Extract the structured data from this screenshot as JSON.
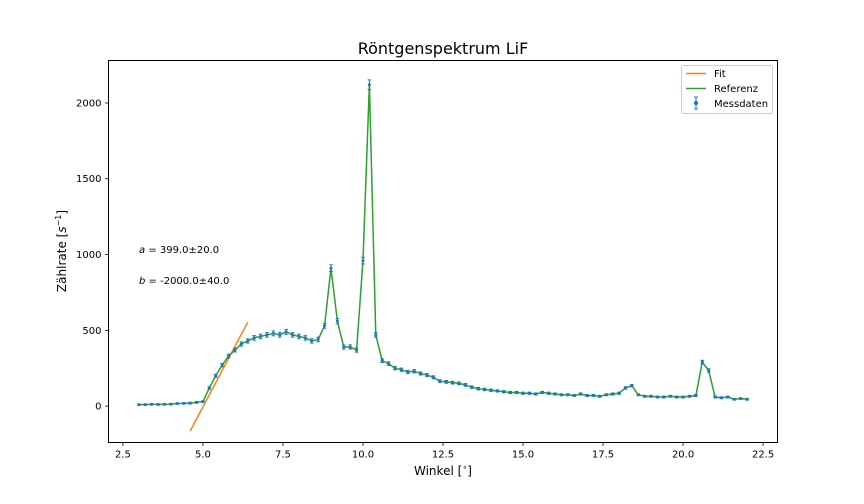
{
  "chart_data": {
    "type": "line",
    "title": "Röntgenspektrum LiF",
    "xlabel": "Winkel [$^\\circ$]",
    "xlabel_parts": {
      "main": "Winkel [",
      "sup": "∘",
      "end": "]"
    },
    "ylabel_parts": {
      "main": "Zählrate [",
      "var": "s",
      "sup": "−1",
      "end": "]"
    },
    "xlim": [
      2.05,
      22.95
    ],
    "ylim": [
      -240,
      2280
    ],
    "xticks": [
      2.5,
      5.0,
      7.5,
      10.0,
      12.5,
      15.0,
      17.5,
      20.0,
      22.5
    ],
    "xtick_labels": [
      "2.5",
      "5.0",
      "7.5",
      "10.0",
      "12.5",
      "15.0",
      "17.5",
      "20.0",
      "22.5"
    ],
    "yticks": [
      0,
      500,
      1000,
      1500,
      2000
    ],
    "ytick_labels": [
      "0",
      "500",
      "1000",
      "1500",
      "2000"
    ],
    "grid": false,
    "legend_position": "top-right",
    "legend": [
      {
        "label": "Fit",
        "kind": "line",
        "color": "#ff7f0e"
      },
      {
        "label": "Referenz",
        "kind": "line",
        "color": "#2ca02c"
      },
      {
        "label": "Messdaten",
        "kind": "errorbar",
        "color": "#1f77b4"
      }
    ],
    "annotations": [
      {
        "var": "a",
        "text": " = 399.0±20.0"
      },
      {
        "var": "b",
        "text": " = -2000.0±40.0"
      }
    ],
    "x": [
      3.0,
      3.2,
      3.4,
      3.6,
      3.8,
      4.0,
      4.2,
      4.4,
      4.6,
      4.8,
      5.0,
      5.2,
      5.4,
      5.6,
      5.8,
      6.0,
      6.2,
      6.4,
      6.6,
      6.8,
      7.0,
      7.2,
      7.4,
      7.6,
      7.8,
      8.0,
      8.2,
      8.4,
      8.6,
      8.8,
      9.0,
      9.2,
      9.4,
      9.6,
      9.8,
      10.0,
      10.2,
      10.4,
      10.6,
      10.8,
      11.0,
      11.2,
      11.4,
      11.6,
      11.8,
      12.0,
      12.2,
      12.4,
      12.6,
      12.8,
      13.0,
      13.2,
      13.4,
      13.6,
      13.8,
      14.0,
      14.2,
      14.4,
      14.6,
      14.8,
      15.0,
      15.2,
      15.4,
      15.6,
      15.8,
      16.0,
      16.2,
      16.4,
      16.6,
      16.8,
      17.0,
      17.2,
      17.4,
      17.6,
      17.8,
      18.0,
      18.2,
      18.4,
      18.6,
      18.8,
      19.0,
      19.2,
      19.4,
      19.6,
      19.8,
      20.0,
      20.2,
      20.4,
      20.6,
      20.8,
      21.0,
      21.2,
      21.4,
      21.6,
      21.8,
      22.0
    ],
    "series": [
      {
        "name": "Messdaten",
        "color": "#1f77b4",
        "y": [
          10,
          10,
          12,
          11,
          12,
          13,
          17,
          18,
          20,
          25,
          30,
          120,
          200,
          270,
          330,
          370,
          410,
          430,
          450,
          460,
          470,
          480,
          470,
          490,
          470,
          460,
          450,
          430,
          440,
          530,
          910,
          560,
          390,
          390,
          370,
          960,
          2120,
          470,
          300,
          280,
          250,
          240,
          225,
          230,
          215,
          205,
          190,
          165,
          160,
          155,
          150,
          140,
          125,
          115,
          110,
          105,
          100,
          95,
          90,
          90,
          85,
          85,
          80,
          90,
          85,
          80,
          75,
          75,
          70,
          80,
          70,
          70,
          65,
          75,
          80,
          85,
          120,
          135,
          75,
          65,
          65,
          60,
          60,
          65,
          60,
          60,
          65,
          70,
          290,
          235,
          60,
          55,
          60,
          45,
          50,
          45
        ],
        "yerr": [
          4,
          4,
          4,
          4,
          4,
          4,
          4,
          4,
          5,
          5,
          5,
          8,
          10,
          11,
          12,
          13,
          14,
          14,
          15,
          15,
          15,
          16,
          15,
          16,
          15,
          15,
          15,
          14,
          15,
          16,
          22,
          17,
          14,
          14,
          14,
          22,
          32,
          15,
          12,
          12,
          11,
          11,
          11,
          11,
          10,
          10,
          10,
          9,
          9,
          9,
          9,
          9,
          8,
          8,
          8,
          8,
          7,
          7,
          7,
          7,
          7,
          7,
          7,
          7,
          7,
          7,
          6,
          6,
          6,
          7,
          6,
          6,
          6,
          6,
          7,
          7,
          8,
          8,
          6,
          6,
          6,
          6,
          6,
          6,
          6,
          6,
          6,
          6,
          12,
          11,
          6,
          6,
          6,
          5,
          5,
          5
        ]
      },
      {
        "name": "Referenz",
        "color": "#2ca02c",
        "same_y_as": "Messdaten"
      },
      {
        "name": "Fit",
        "color": "#ff7f0e",
        "slope": 399.0,
        "intercept": -2000.0,
        "x_range": [
          4.6,
          6.4
        ]
      }
    ]
  }
}
